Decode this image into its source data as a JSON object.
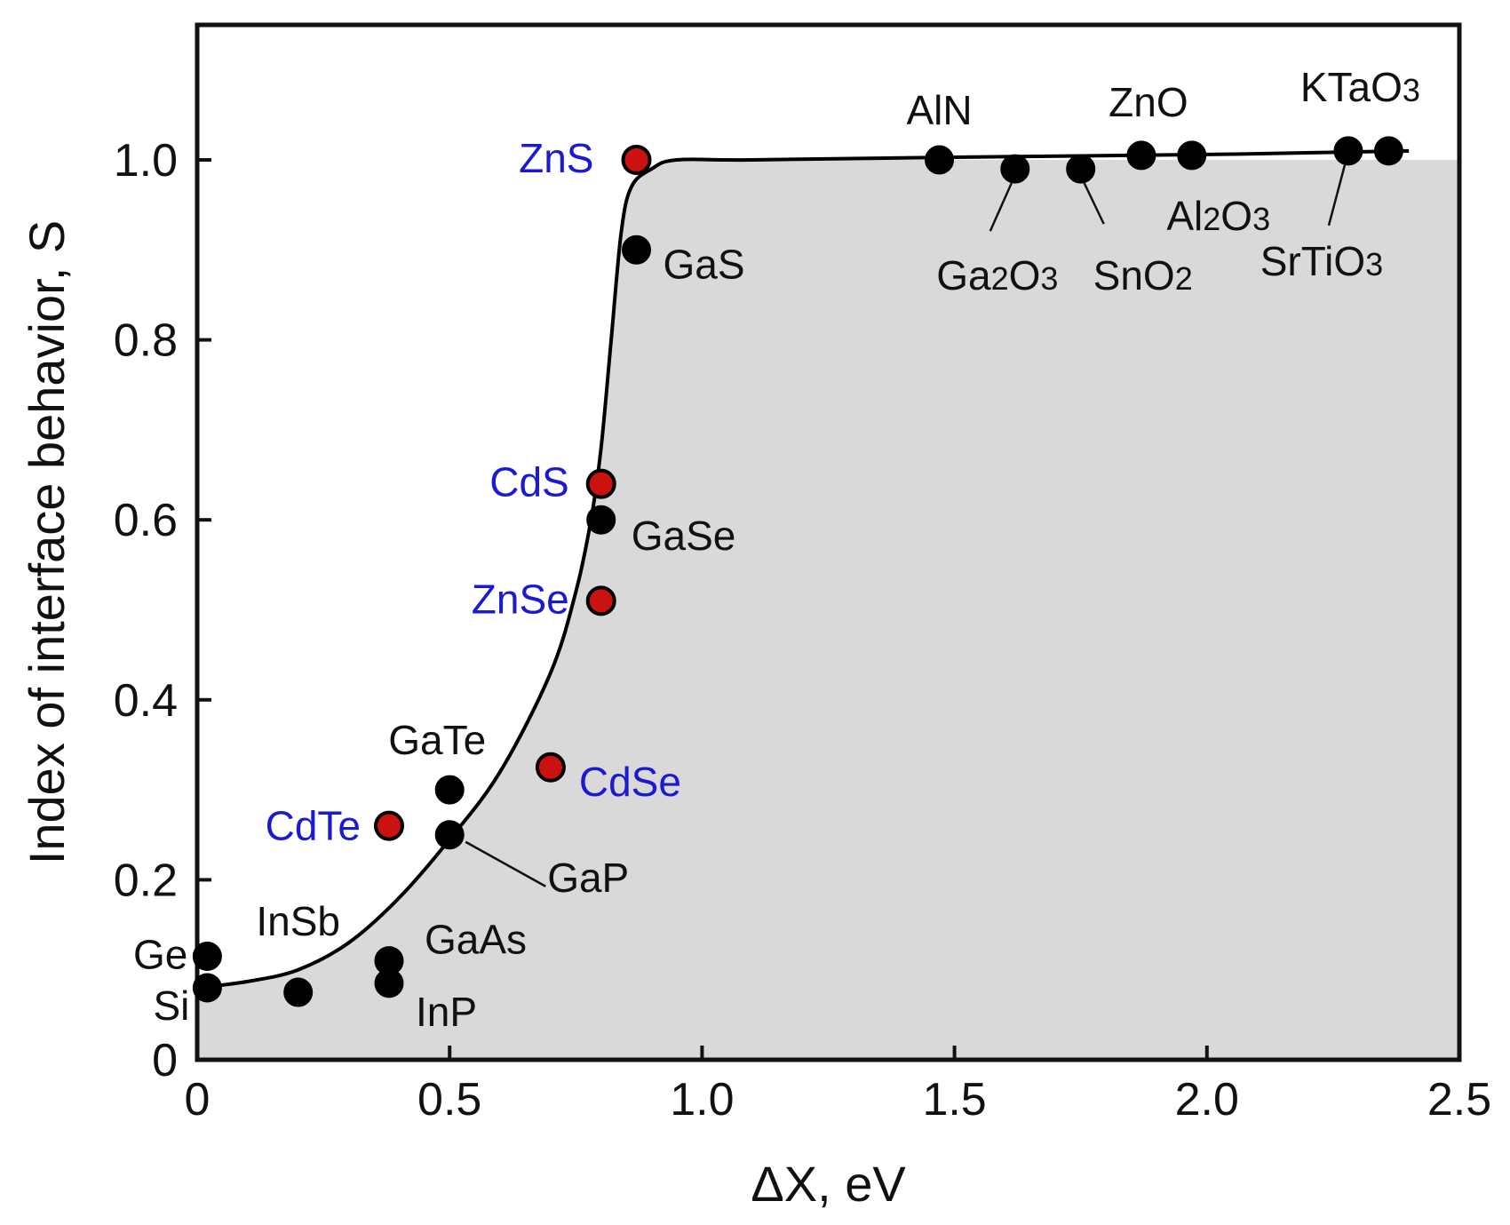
{
  "chart_data": {
    "type": "scatter",
    "xlabel": "ΔX, eV",
    "ylabel": "Index of interface behavior, S",
    "xlim": [
      0,
      2.5
    ],
    "ylim": [
      0,
      1.15
    ],
    "x_ticks": [
      "0",
      "0.5",
      "1.0",
      "1.5",
      "2.0",
      "2.5"
    ],
    "x_tick_values": [
      0,
      0.5,
      1.0,
      1.5,
      2.0,
      2.5
    ],
    "y_ticks": [
      "0",
      "0.2",
      "0.4",
      "0.6",
      "0.8",
      "1.0"
    ],
    "y_tick_values": [
      0,
      0.2,
      0.4,
      0.6,
      0.8,
      1.0
    ],
    "grid": false,
    "legend": "none",
    "colors": {
      "black_point": "#000000",
      "red_point": "#cc1111",
      "blue_label": "#1a1ad0",
      "shade": "#d9d9d9",
      "curve": "#000000"
    },
    "series": [
      {
        "points": [
          {
            "label": "Si",
            "x": 0.02,
            "y": 0.08
          },
          {
            "label": "Ge",
            "x": 0.02,
            "y": 0.115
          },
          {
            "label": "InSb",
            "x": 0.2,
            "y": 0.075
          },
          {
            "label": "GaAs",
            "x": 0.38,
            "y": 0.11
          },
          {
            "label": "InP",
            "x": 0.38,
            "y": 0.085
          },
          {
            "label": "GaP",
            "x": 0.5,
            "y": 0.25
          },
          {
            "label": "GaTe",
            "x": 0.5,
            "y": 0.3
          },
          {
            "label": "GaSe",
            "x": 0.8,
            "y": 0.6
          },
          {
            "label": "GaS",
            "x": 0.87,
            "y": 0.9
          },
          {
            "label": "AlN",
            "x": 1.47,
            "y": 1.0
          },
          {
            "label": "Ga2O3",
            "x": 1.62,
            "y": 0.99
          },
          {
            "label": "SnO2",
            "x": 1.75,
            "y": 0.99
          },
          {
            "label": "ZnO",
            "x": 1.87,
            "y": 1.005
          },
          {
            "label": "Al2O3",
            "x": 1.97,
            "y": 1.005
          },
          {
            "label": "SrTiO3",
            "x": 2.28,
            "y": 1.01
          },
          {
            "label": "KTaO3",
            "x": 2.36,
            "y": 1.01
          }
        ]
      },
      {
        "points": [
          {
            "label": "CdTe",
            "x": 0.38,
            "y": 0.26
          },
          {
            "label": "CdSe",
            "x": 0.7,
            "y": 0.325
          },
          {
            "label": "ZnSe",
            "x": 0.8,
            "y": 0.51
          },
          {
            "label": "CdS",
            "x": 0.8,
            "y": 0.64
          },
          {
            "label": "ZnS",
            "x": 0.87,
            "y": 1.0
          }
        ]
      }
    ],
    "curve": {
      "x": [
        0,
        0.1,
        0.2,
        0.3,
        0.4,
        0.5,
        0.6,
        0.7,
        0.75,
        0.78,
        0.8,
        0.82,
        0.84,
        0.86,
        0.9,
        0.95,
        1.1,
        1.5,
        2.0,
        2.4
      ],
      "y": [
        0.08,
        0.087,
        0.1,
        0.13,
        0.18,
        0.245,
        0.32,
        0.43,
        0.52,
        0.6,
        0.68,
        0.8,
        0.92,
        0.97,
        0.99,
        1.0,
        1.0,
        1.003,
        1.006,
        1.01
      ]
    },
    "shade": {
      "x": [
        0,
        0.1,
        0.2,
        0.3,
        0.4,
        0.5,
        0.6,
        0.7,
        0.75,
        0.78,
        0.8,
        0.82,
        0.84,
        0.86,
        0.9,
        0.95,
        1.1,
        2.5
      ],
      "y": [
        0.08,
        0.087,
        0.1,
        0.13,
        0.18,
        0.245,
        0.32,
        0.43,
        0.52,
        0.6,
        0.68,
        0.8,
        0.92,
        0.97,
        0.99,
        1.0,
        1.0,
        1.0
      ]
    }
  }
}
